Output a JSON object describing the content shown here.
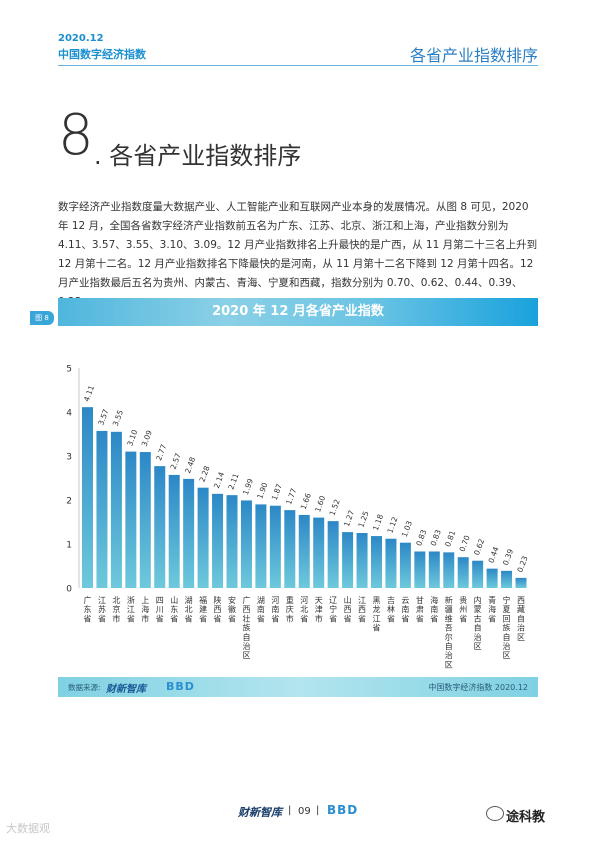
{
  "header": {
    "date": "2020.12",
    "name": "中国数字经济指数",
    "right_title": "各省产业指数排序"
  },
  "section": {
    "number": "8",
    "title": ". 各省产业指数排序"
  },
  "body_text": "数字经济产业指数度量大数据产业、人工智能产业和互联网产业本身的发展情况。从图 8 可见，2020 年 12 月，全国各省数字经济产业指数前五名为广东、江苏、北京、浙江和上海，产业指数分别为 4.11、3.57、3.55、3.10、3.09。12 月产业指数排名上升最快的是广西，从 11 月第二十三名上升到 12 月第十二名。12 月产业指数排名下降最快的是河南，从 11 月第十二名下降到 12 月第十四名。12 月产业指数最后五名为贵州、内蒙古、青海、宁夏和西藏，指数分别为 0.70、0.62、0.44、0.39、0.23。",
  "figure": {
    "tag": "图 8",
    "title": "2020 年 12 月各省产业指数"
  },
  "chart_data": {
    "type": "bar",
    "categories": [
      "广东省",
      "江苏省",
      "北京市",
      "浙江省",
      "上海市",
      "四川省",
      "山东省",
      "湖北省",
      "福建省",
      "陕西省",
      "安徽省",
      "广西壮族自治区",
      "湖南省",
      "河南省",
      "重庆市",
      "河北省",
      "天津市",
      "辽宁省",
      "山西省",
      "江西省",
      "黑龙江省",
      "吉林省",
      "云南省",
      "甘肃省",
      "海南省",
      "新疆维吾尔自治区",
      "贵州省",
      "内蒙古自治区",
      "青海省",
      "宁夏回族自治区",
      "西藏自治区"
    ],
    "values": [
      4.11,
      3.57,
      3.55,
      3.1,
      3.09,
      2.77,
      2.57,
      2.48,
      2.28,
      2.14,
      2.11,
      1.99,
      1.9,
      1.87,
      1.77,
      1.66,
      1.6,
      1.52,
      1.27,
      1.25,
      1.18,
      1.12,
      1.03,
      0.83,
      0.83,
      0.81,
      0.7,
      0.62,
      0.44,
      0.39,
      0.23
    ],
    "value_labels": [
      "4.11",
      "3.57",
      "3.55",
      "3.10",
      "3.09",
      "2.77",
      "2.57",
      "2.48",
      "2.28",
      "2.14",
      "2.11",
      "1.99",
      "1.90",
      "1.87",
      "1.77",
      "1.66",
      "1.60",
      "1.52",
      "1.27",
      "1.25",
      "1.18",
      "1.12",
      "1.03",
      "0.83",
      "0.83",
      "0.81",
      "0.70",
      "0.62",
      "0.44",
      "0.39",
      "0.23"
    ],
    "y_ticks": [
      "0",
      "1",
      "2",
      "3",
      "4",
      "5"
    ],
    "ylim": [
      0,
      5
    ],
    "grid": false,
    "bar_color_top": "#2c88c6",
    "bar_color_bottom": "#6ec9dc"
  },
  "footer": {
    "source_label": "数据来源:",
    "source_logo1": "财新智库",
    "source_logo2": "BBD",
    "right_text": "中国数字经济指数 2020.12"
  },
  "page": {
    "logo1": "财新智库",
    "sep": "|",
    "number": "09",
    "logo2": "BBD"
  },
  "watermark": {
    "left": "大数据观",
    "right": "途科教"
  }
}
